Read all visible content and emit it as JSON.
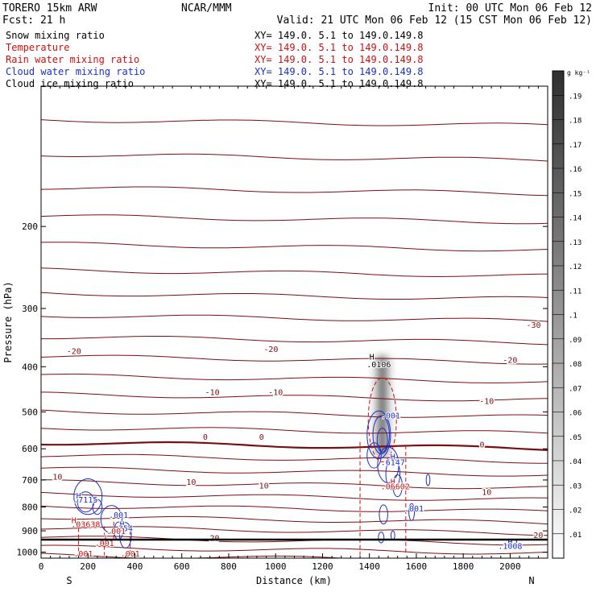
{
  "header": {
    "model": "TORERO   15km ARW",
    "center": "NCAR/MMM",
    "init": "Init: 00 UTC Mon 06 Feb 12",
    "fcst": "Fcst:   21 h",
    "valid": "Valid: 21 UTC Mon 06 Feb 12 (15 CST Mon 06 Feb 12)"
  },
  "colors": {
    "dark_red": "#7a0f12",
    "red": "#cc1111",
    "blue": "#1a2fc8",
    "black": "#000000"
  },
  "legend": [
    {
      "label": "Snow mixing ratio",
      "xy": "",
      "color": "#000000"
    },
    {
      "label": "Temperature",
      "xy": "XY= 149.0.  5.1 to 149.0.149.8",
      "color": "#cc1111"
    },
    {
      "label": "Rain water mixing ratio",
      "xy": "XY= 149.0.  5.1 to 149.0.149.8",
      "color": "#cc1111"
    },
    {
      "label": "Cloud water mixing ratio",
      "xy": "XY= 149.0.  5.1 to 149.0.149.8",
      "color": "#1a2fc8"
    },
    {
      "label": "Cloud  ice mixing ratio",
      "xy": "XY= 149.0.  5.1 to 149.0.149.8",
      "color": "#000000"
    }
  ],
  "snow_xy": "XY= 149.0.  5.1 to 149.0.149.8",
  "chart_data": {
    "type": "cross-section",
    "xlabel": "Distance (km)",
    "ylabel": "Pressure (hPa)",
    "xlim": [
      0,
      2160
    ],
    "ylim": [
      1030,
      100
    ],
    "y_log_scale": true,
    "xticks": [
      0,
      200,
      400,
      600,
      800,
      1000,
      1200,
      1400,
      1600,
      1800,
      2000
    ],
    "yticks": [
      200,
      300,
      400,
      500,
      600,
      700,
      800,
      900,
      1000
    ],
    "end_labels": {
      "left": "S",
      "right": "N"
    },
    "colorbar": {
      "unit": "g kg⁻¹",
      "ticks": [
        ".01",
        ".02",
        ".03",
        ".04",
        ".05",
        ".06",
        ".07",
        ".08",
        ".09",
        ".1",
        ".11",
        ".12",
        ".13",
        ".14",
        ".15",
        ".16",
        ".17",
        ".18",
        ".19"
      ]
    },
    "temperature_isotherms": [
      {
        "label": "-30",
        "x": 2100,
        "p": 325
      },
      {
        "label": "-20",
        "x": 140,
        "p": 370
      },
      {
        "label": "-20",
        "x": 980,
        "p": 366
      },
      {
        "label": "-20",
        "x": 2000,
        "p": 386
      },
      {
        "label": "-10",
        "x": 730,
        "p": 453
      },
      {
        "label": "-10",
        "x": 1000,
        "p": 453
      },
      {
        "label": "-10",
        "x": 1900,
        "p": 473
      },
      {
        "label": "0",
        "x": 700,
        "p": 565
      },
      {
        "label": "0",
        "x": 940,
        "p": 565
      },
      {
        "label": "0",
        "x": 1880,
        "p": 587
      },
      {
        "label": "10",
        "x": 70,
        "p": 688
      },
      {
        "label": "10",
        "x": 640,
        "p": 706
      },
      {
        "label": "10",
        "x": 950,
        "p": 718
      },
      {
        "label": "10",
        "x": 1900,
        "p": 742
      },
      {
        "label": "20",
        "x": 740,
        "p": 930
      },
      {
        "label": "20",
        "x": 2120,
        "p": 918
      }
    ],
    "extrema_labels": [
      {
        "text": "H",
        "x": 1410,
        "p": 380,
        "color": "black"
      },
      {
        "text": ".0106",
        "x": 1440,
        "p": 395,
        "color": "black"
      },
      {
        "text": "H",
        "x": 1500,
        "p": 622,
        "color": "blue"
      },
      {
        "text": ".6147",
        "x": 1500,
        "p": 640,
        "color": "blue"
      },
      {
        "text": "H",
        "x": 1500,
        "p": 705,
        "color": "red"
      },
      {
        "text": ".06602",
        "x": 1510,
        "p": 722,
        "color": "red"
      },
      {
        "text": ".001",
        "x": 1490,
        "p": 508,
        "color": "blue"
      },
      {
        "text": ".001",
        "x": 1590,
        "p": 805,
        "color": "blue"
      },
      {
        "text": "H",
        "x": 160,
        "p": 755,
        "color": "blue"
      },
      {
        "text": ".7115",
        "x": 190,
        "p": 770,
        "color": "blue"
      },
      {
        "text": ".001",
        "x": 330,
        "p": 830,
        "color": "blue"
      },
      {
        "text": "H",
        "x": 140,
        "p": 852,
        "color": "red"
      },
      {
        "text": ".03638",
        "x": 190,
        "p": 870,
        "color": "red"
      },
      {
        "text": "H",
        "x": 345,
        "p": 870,
        "color": "blue"
      },
      {
        "text": ".354",
        "x": 350,
        "p": 887,
        "color": "blue"
      },
      {
        "text": ".001",
        "x": 320,
        "p": 900,
        "color": "red"
      },
      {
        "text": "L",
        "x": 280,
        "p": 930,
        "color": "red"
      },
      {
        "text": ".001",
        "x": 270,
        "p": 955,
        "color": "red"
      },
      {
        "text": ".001",
        "x": 180,
        "p": 1005,
        "color": "red"
      },
      {
        "text": ".001",
        "x": 380,
        "p": 1005,
        "color": "red"
      },
      {
        "text": "H",
        "x": 2000,
        "p": 950,
        "color": "blue"
      },
      {
        "text": ".1008",
        "x": 2000,
        "p": 968,
        "color": "blue"
      }
    ]
  }
}
